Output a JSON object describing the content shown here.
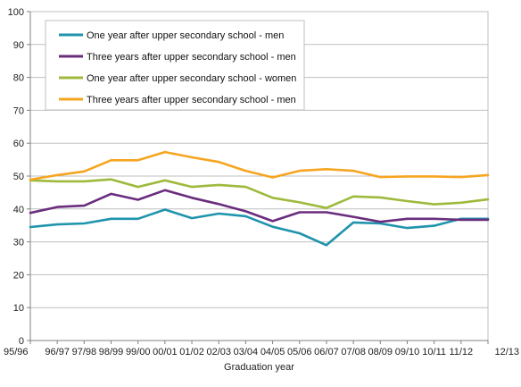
{
  "chart_data": {
    "type": "line",
    "xlabel": "Graduation year",
    "ylabel": "",
    "ylim": [
      0,
      100
    ],
    "yticks": [
      0,
      10,
      20,
      30,
      40,
      50,
      60,
      70,
      80,
      90,
      100
    ],
    "grid": "horizontal",
    "legend_position": "top-left (inside plot)",
    "categories": [
      "95/96",
      "96/97",
      "97/98",
      "98/99",
      "99/00",
      "00/01",
      "01/02",
      "02/03",
      "03/04",
      "04/05",
      "05/06",
      "06/07",
      "07/08",
      "08/09",
      "09/10",
      "10/11",
      "11/12",
      "12/13"
    ],
    "series": [
      {
        "name": "One year after upper secondary school - men",
        "color": "#1f94ac",
        "values": [
          34.5,
          35.3,
          35.6,
          37.0,
          37.0,
          39.8,
          37.2,
          38.6,
          37.8,
          34.6,
          32.6,
          29.0,
          35.9,
          35.6,
          34.2,
          34.9,
          37.0,
          37.0
        ]
      },
      {
        "name": "Three years after upper secondary school - men",
        "color": "#6a2d7e",
        "values": [
          38.8,
          40.6,
          41.0,
          44.6,
          42.8,
          45.7,
          43.4,
          41.5,
          39.3,
          36.3,
          39.0,
          39.0,
          37.6,
          36.1,
          37.0,
          37.0,
          36.7,
          36.7
        ]
      },
      {
        "name": "One year after upper secondary school - women",
        "color": "#9dba3c",
        "values": [
          48.7,
          48.4,
          48.4,
          49.0,
          46.7,
          48.7,
          46.7,
          47.3,
          46.7,
          43.4,
          42.0,
          40.3,
          43.8,
          43.5,
          42.4,
          41.4,
          41.9,
          42.9
        ]
      },
      {
        "name": "Three years after upper secondary school - men",
        "color": "#f6a520",
        "values": [
          48.9,
          50.3,
          51.4,
          54.8,
          54.8,
          57.3,
          55.7,
          54.3,
          51.6,
          49.6,
          51.6,
          52.1,
          51.6,
          49.7,
          49.9,
          49.9,
          49.7,
          50.3
        ]
      }
    ]
  }
}
